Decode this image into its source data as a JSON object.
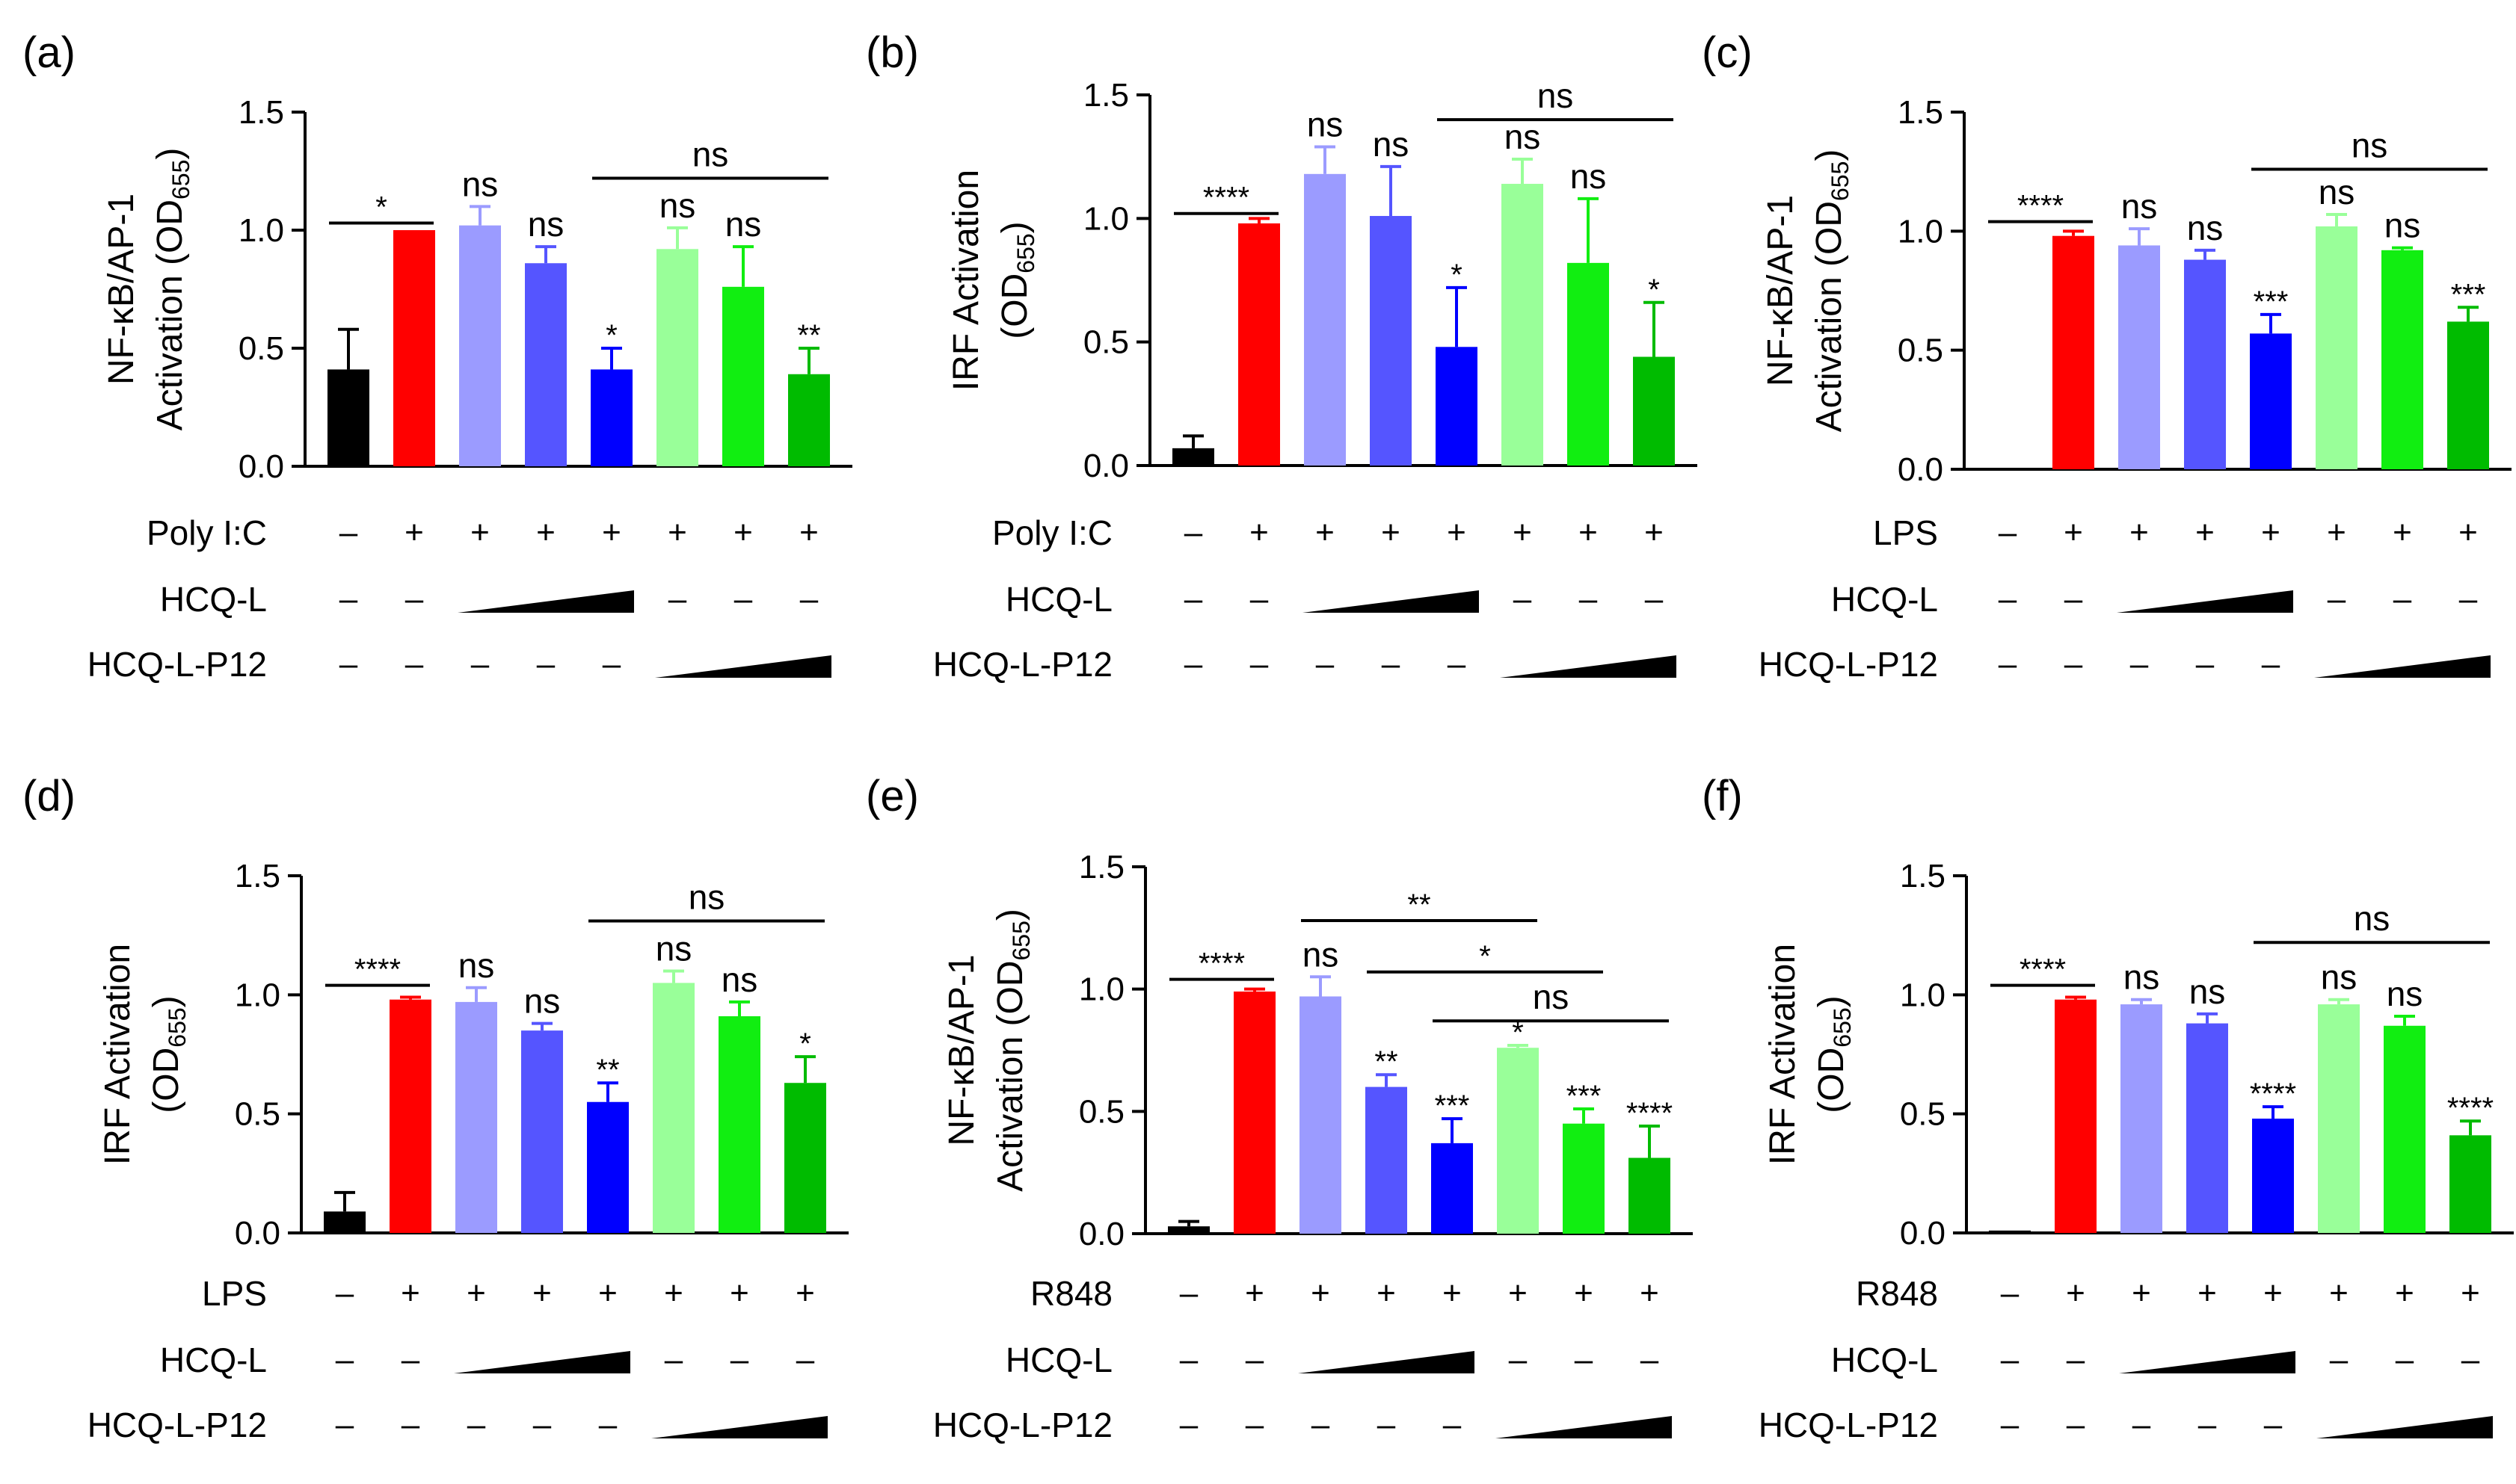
{
  "colors": {
    "black": "#000000",
    "red": "#ff0000",
    "lavender": "#9b9bff",
    "mid_blue": "#5555ff",
    "blue": "#0000ff",
    "pale_green": "#99ff99",
    "green": "#11ee11",
    "dark_green": "#00bb00"
  },
  "chart_data": [
    {
      "type": "bar",
      "panel_label": "(a)",
      "ylabel_line1": "NF-κB/AP-1",
      "ylabel_line2_pre": "Activation (OD",
      "ylabel_sub": "655",
      "ylabel_post": ")",
      "ylim": [
        0,
        1.5
      ],
      "yticks": [
        "0.0",
        "0.5",
        "1.0",
        "1.5"
      ],
      "values": [
        0.41,
        1.0,
        1.02,
        0.86,
        0.41,
        0.92,
        0.76,
        0.39
      ],
      "errors": [
        0.17,
        0.0,
        0.08,
        0.07,
        0.09,
        0.09,
        0.17,
        0.11
      ],
      "colors": [
        "#000000",
        "#ff0000",
        "#9b9bff",
        "#5555ff",
        "#0000ff",
        "#99ff99",
        "#11ee11",
        "#00bb00"
      ],
      "bar_annotations": [
        "",
        "",
        "ns",
        "ns",
        "*",
        "ns",
        "ns",
        "**"
      ],
      "brackets": [
        {
          "from": 0,
          "to": 1,
          "label": "*",
          "y": 1.03
        },
        {
          "from": 4,
          "to": 7,
          "label": "ns",
          "y": 1.22
        }
      ],
      "stimulus": "Poly I:C",
      "stimulus_signs": [
        "–",
        "+",
        "+",
        "+",
        "+",
        "+",
        "+",
        "+"
      ],
      "row2_label": "HCQ-L",
      "row2_signs": [
        "–",
        "–",
        "",
        "",
        "",
        "–",
        "–",
        "–"
      ],
      "row3_label": "HCQ-L-P12",
      "row3_signs": [
        "–",
        "–",
        "–",
        "–",
        "–",
        "",
        "",
        ""
      ]
    },
    {
      "type": "bar",
      "panel_label": "(b)",
      "ylabel_line1": "IRF Activation",
      "ylabel_line2_pre": "(OD",
      "ylabel_sub": "655",
      "ylabel_post": ")",
      "ylim": [
        0,
        1.5
      ],
      "yticks": [
        "0.0",
        "0.5",
        "1.0",
        "1.5"
      ],
      "values": [
        0.07,
        0.98,
        1.18,
        1.01,
        0.48,
        1.14,
        0.82,
        0.44
      ],
      "errors": [
        0.05,
        0.02,
        0.11,
        0.2,
        0.24,
        0.1,
        0.26,
        0.22
      ],
      "colors": [
        "#000000",
        "#ff0000",
        "#9b9bff",
        "#5555ff",
        "#0000ff",
        "#99ff99",
        "#11ee11",
        "#00bb00"
      ],
      "bar_annotations": [
        "",
        "",
        "ns",
        "ns",
        "*",
        "ns",
        "ns",
        "*"
      ],
      "brackets": [
        {
          "from": 0,
          "to": 1,
          "label": "****",
          "y": 1.02
        },
        {
          "from": 4,
          "to": 7,
          "label": "ns",
          "y": 1.4
        }
      ],
      "stimulus": "Poly I:C",
      "stimulus_signs": [
        "–",
        "+",
        "+",
        "+",
        "+",
        "+",
        "+",
        "+"
      ],
      "row2_label": "HCQ-L",
      "row2_signs": [
        "–",
        "–",
        "",
        "",
        "",
        "–",
        "–",
        "–"
      ],
      "row3_label": "HCQ-L-P12",
      "row3_signs": [
        "–",
        "–",
        "–",
        "–",
        "–",
        "",
        "",
        ""
      ]
    },
    {
      "type": "bar",
      "panel_label": "(c)",
      "ylabel_line1": "NF-κB/AP-1",
      "ylabel_line2_pre": "Activation (OD",
      "ylabel_sub": "655",
      "ylabel_post": ")",
      "ylim": [
        0,
        1.5
      ],
      "yticks": [
        "0.0",
        "0.5",
        "1.0",
        "1.5"
      ],
      "values": [
        0.0,
        0.98,
        0.94,
        0.88,
        0.57,
        1.02,
        0.92,
        0.62
      ],
      "errors": [
        0.0,
        0.02,
        0.07,
        0.04,
        0.08,
        0.05,
        0.01,
        0.06
      ],
      "colors": [
        "#000000",
        "#ff0000",
        "#9b9bff",
        "#5555ff",
        "#0000ff",
        "#99ff99",
        "#11ee11",
        "#00bb00"
      ],
      "bar_annotations": [
        "",
        "",
        "ns",
        "ns",
        "***",
        "ns",
        "ns",
        "***"
      ],
      "brackets": [
        {
          "from": 0,
          "to": 1,
          "label": "****",
          "y": 1.04
        },
        {
          "from": 4,
          "to": 7,
          "label": "ns",
          "y": 1.26
        }
      ],
      "stimulus": "LPS",
      "stimulus_signs": [
        "–",
        "+",
        "+",
        "+",
        "+",
        "+",
        "+",
        "+"
      ],
      "row2_label": "HCQ-L",
      "row2_signs": [
        "–",
        "–",
        "",
        "",
        "",
        "–",
        "–",
        "–"
      ],
      "row3_label": "HCQ-L-P12",
      "row3_signs": [
        "–",
        "–",
        "–",
        "–",
        "–",
        "",
        "",
        ""
      ]
    },
    {
      "type": "bar",
      "panel_label": "(d)",
      "ylabel_line1": "IRF Activation",
      "ylabel_line2_pre": "(OD",
      "ylabel_sub": "655",
      "ylabel_post": ")",
      "ylim": [
        0,
        1.5
      ],
      "yticks": [
        "0.0",
        "0.5",
        "1.0",
        "1.5"
      ],
      "values": [
        0.09,
        0.98,
        0.97,
        0.85,
        0.55,
        1.05,
        0.91,
        0.63
      ],
      "errors": [
        0.08,
        0.01,
        0.06,
        0.03,
        0.08,
        0.05,
        0.06,
        0.11
      ],
      "colors": [
        "#000000",
        "#ff0000",
        "#9b9bff",
        "#5555ff",
        "#0000ff",
        "#99ff99",
        "#11ee11",
        "#00bb00"
      ],
      "bar_annotations": [
        "",
        "",
        "ns",
        "ns",
        "**",
        "ns",
        "ns",
        "*"
      ],
      "brackets": [
        {
          "from": 0,
          "to": 1,
          "label": "****",
          "y": 1.04
        },
        {
          "from": 4,
          "to": 7,
          "label": "ns",
          "y": 1.31
        }
      ],
      "stimulus": "LPS",
      "stimulus_signs": [
        "–",
        "+",
        "+",
        "+",
        "+",
        "+",
        "+",
        "+"
      ],
      "row2_label": "HCQ-L",
      "row2_signs": [
        "–",
        "–",
        "",
        "",
        "",
        "–",
        "–",
        "–"
      ],
      "row3_label": "HCQ-L-P12",
      "row3_signs": [
        "–",
        "–",
        "–",
        "–",
        "–",
        "",
        "",
        ""
      ]
    },
    {
      "type": "bar",
      "panel_label": "(e)",
      "ylabel_line1": "NF-κB/AP-1",
      "ylabel_line2_pre": "Activation (OD",
      "ylabel_sub": "655",
      "ylabel_post": ")",
      "ylim": [
        0,
        1.5
      ],
      "yticks": [
        "0.0",
        "0.5",
        "1.0",
        "1.5"
      ],
      "values": [
        0.03,
        0.99,
        0.97,
        0.6,
        0.37,
        0.76,
        0.45,
        0.31
      ],
      "errors": [
        0.02,
        0.01,
        0.08,
        0.05,
        0.1,
        0.01,
        0.06,
        0.13
      ],
      "colors": [
        "#000000",
        "#ff0000",
        "#9b9bff",
        "#5555ff",
        "#0000ff",
        "#99ff99",
        "#11ee11",
        "#00bb00"
      ],
      "bar_annotations": [
        "",
        "",
        "ns",
        "**",
        "***",
        "*",
        "***",
        "****"
      ],
      "brackets": [
        {
          "from": 0,
          "to": 1,
          "label": "****",
          "y": 1.04
        },
        {
          "from": 2,
          "to": 5,
          "label": "**",
          "y": 1.28
        },
        {
          "from": 3,
          "to": 6,
          "label": "*",
          "y": 1.07
        },
        {
          "from": 4,
          "to": 7,
          "label": "ns",
          "y": 0.87
        }
      ],
      "stimulus": "R848",
      "stimulus_signs": [
        "–",
        "+",
        "+",
        "+",
        "+",
        "+",
        "+",
        "+"
      ],
      "row2_label": "HCQ-L",
      "row2_signs": [
        "–",
        "–",
        "",
        "",
        "",
        "–",
        "–",
        "–"
      ],
      "row3_label": "HCQ-L-P12",
      "row3_signs": [
        "–",
        "–",
        "–",
        "–",
        "–",
        "",
        "",
        ""
      ]
    },
    {
      "type": "bar",
      "panel_label": "(f)",
      "ylabel_line1": "IRF Activation",
      "ylabel_line2_pre": "(OD",
      "ylabel_sub": "655",
      "ylabel_post": ")",
      "ylim": [
        0,
        1.5
      ],
      "yticks": [
        "0.0",
        "0.5",
        "1.0",
        "1.5"
      ],
      "values": [
        0.01,
        0.98,
        0.96,
        0.88,
        0.48,
        0.96,
        0.87,
        0.41
      ],
      "errors": [
        0.0,
        0.01,
        0.02,
        0.04,
        0.05,
        0.02,
        0.04,
        0.06
      ],
      "colors": [
        "#000000",
        "#ff0000",
        "#9b9bff",
        "#5555ff",
        "#0000ff",
        "#99ff99",
        "#11ee11",
        "#00bb00"
      ],
      "bar_annotations": [
        "",
        "",
        "ns",
        "ns",
        "****",
        "ns",
        "ns",
        "****"
      ],
      "brackets": [
        {
          "from": 0,
          "to": 1,
          "label": "****",
          "y": 1.04
        },
        {
          "from": 4,
          "to": 7,
          "label": "ns",
          "y": 1.22
        }
      ],
      "stimulus": "R848",
      "stimulus_signs": [
        "–",
        "+",
        "+",
        "+",
        "+",
        "+",
        "+",
        "+"
      ],
      "row2_label": "HCQ-L",
      "row2_signs": [
        "–",
        "–",
        "",
        "",
        "",
        "–",
        "–",
        "–"
      ],
      "row3_label": "HCQ-L-P12",
      "row3_signs": [
        "–",
        "–",
        "–",
        "–",
        "–",
        "",
        "",
        ""
      ]
    }
  ]
}
